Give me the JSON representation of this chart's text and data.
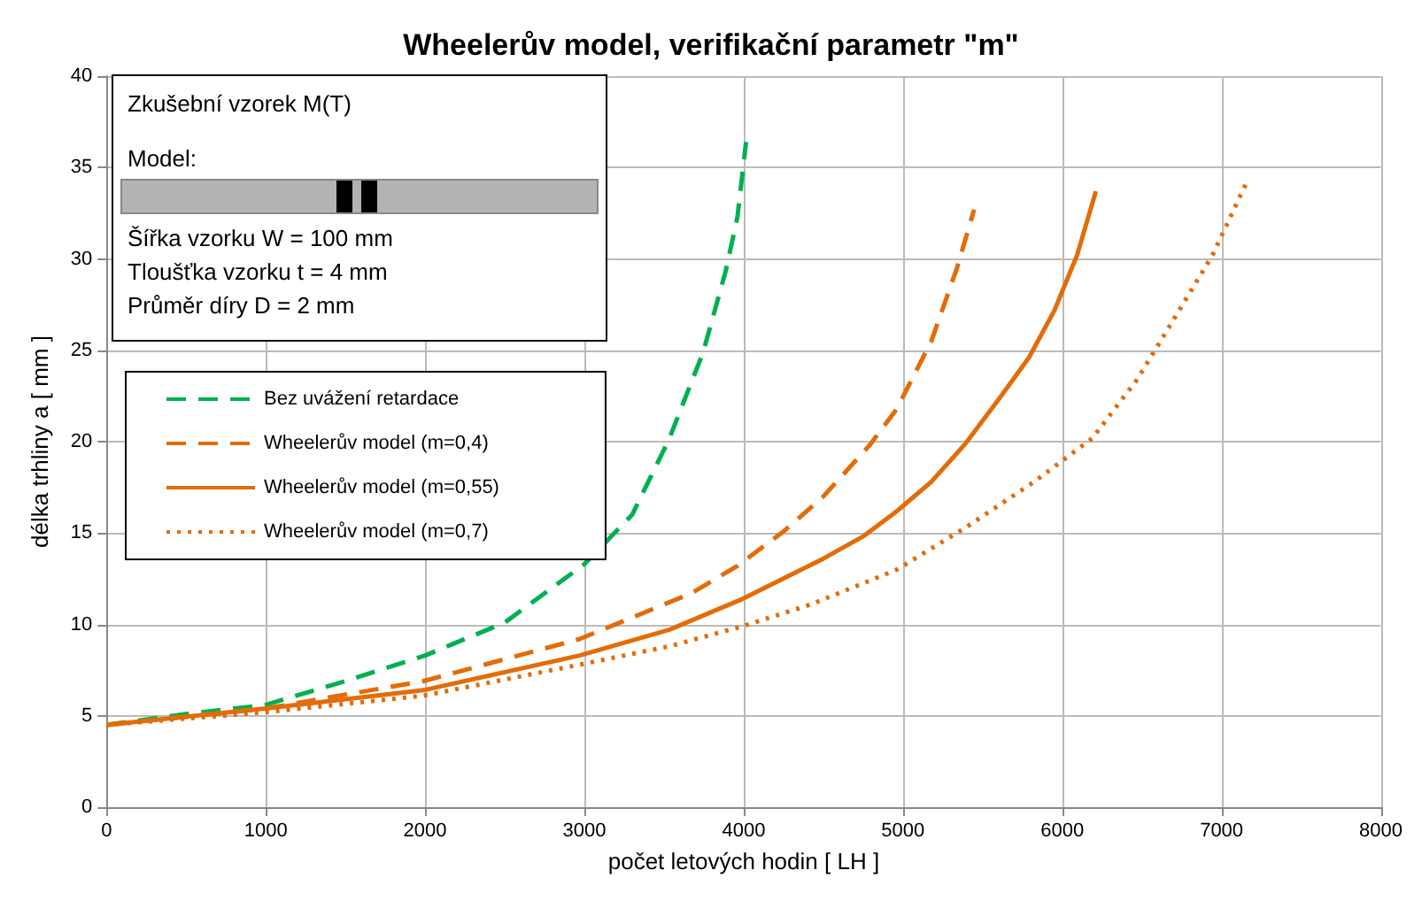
{
  "chart_data": {
    "type": "line",
    "title": "Wheelerův model, verifikační parametr \"m\"",
    "xlabel": "počet letových hodin [ LH ]",
    "ylabel": "délka trhliny a [ mm ]",
    "annotations": [
      "Zkušební vzorek M(T)",
      "Model:",
      "Šířka vzorku W = 100 mm",
      "Tloušťka vzorku t = 4 mm",
      "Průměr díry D = 2 mm"
    ],
    "xlim": [
      0,
      8000
    ],
    "xticks": [
      0,
      1000,
      2000,
      3000,
      4000,
      5000,
      6000,
      7000,
      8000
    ],
    "ylim": [
      0,
      40
    ],
    "yticks": [
      0,
      5,
      10,
      15,
      20,
      25,
      30,
      35,
      40
    ],
    "grid": true,
    "legend": "left",
    "marker": "none",
    "series": [
      {
        "name": "Bez uvážení retardace",
        "color": "#00b050",
        "line_style": "dashed",
        "x": [
          0,
          500,
          1000,
          1500,
          2000,
          2500,
          3000,
          3300,
          3530,
          3746,
          3886,
          3961,
          4015
        ],
        "values": [
          4.5,
          5.1,
          5.6,
          6.9,
          8.3,
          10.1,
          13.3,
          16,
          20.1,
          24.9,
          29.3,
          32.3,
          36.4
        ]
      },
      {
        "name": "Wheelerův model (m=0,4)",
        "color": "#e36c09",
        "line_style": "dashed",
        "x": [
          0,
          1000,
          1990,
          2970,
          3670,
          3961,
          4252,
          4500,
          4790,
          4962,
          5178,
          5339,
          5447
        ],
        "values": [
          4.5,
          5.4,
          6.9,
          9.2,
          11.7,
          13.2,
          15.1,
          17,
          19.8,
          21.8,
          25.5,
          29.5,
          32.7
        ]
      },
      {
        "name": "Wheelerův model (m=0,55)",
        "color": "#e36c09",
        "line_style": "solid",
        "x": [
          0,
          1000,
          1990,
          2970,
          3531,
          3994,
          4500,
          4747,
          4962,
          5178,
          5393,
          5608,
          5791,
          5952,
          6093,
          6211
        ],
        "values": [
          4.5,
          5.4,
          6.4,
          8.3,
          9.7,
          11.4,
          13.6,
          14.8,
          16.2,
          17.8,
          19.9,
          22.4,
          24.6,
          27.2,
          30.2,
          33.7
        ]
      },
      {
        "name": "Wheelerův model (m=0,7)",
        "color": "#e36c09",
        "line_style": "dotted",
        "x": [
          0,
          1000,
          1990,
          2970,
          3531,
          3994,
          4424,
          4962,
          5393,
          5823,
          6190,
          6470,
          6728,
          6943,
          7158
        ],
        "values": [
          4.5,
          5.2,
          6.1,
          7.8,
          8.8,
          9.9,
          11.1,
          13,
          15.3,
          17.8,
          20.2,
          23.4,
          27.1,
          30.2,
          34.2
        ]
      }
    ]
  }
}
